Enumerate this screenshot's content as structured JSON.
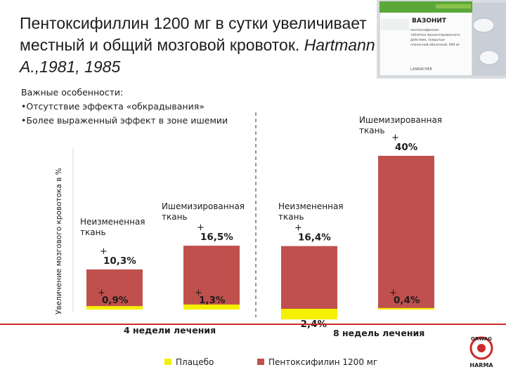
{
  "slide": {
    "title_main": "Пентоксифиллин 1200 мг в сутки увеличивает местный и общий мозговой кровоток.",
    "title_ref": "Hartmann A.,1981, 1985",
    "notes_heading": "Важные особенности:",
    "notes": [
      "•Отсутствие эффекта «обкрадывания»",
      "•Более выраженный эффект в зоне ишемии"
    ]
  },
  "product_box": {
    "brand": "ВАЗОНИТ",
    "lines": [
      "пентоксифиллин",
      "таблетки пролонгированного",
      "действия, покрытые",
      "пленочной оболочкой, 600 мг"
    ],
    "maker": "LANNACHER"
  },
  "logo": {
    "top_text": "ORWAG",
    "bottom_text": "HARMA"
  },
  "chart_data": {
    "type": "bar",
    "ylabel": "Увеличение мозгового кровотока в %",
    "period_labels": [
      "4 недели лечения",
      "8 недель лечения"
    ],
    "groups": [
      {
        "label": "Неизмененная ткань",
        "period": "4 недели лечения",
        "placebo": 0.9,
        "drug": 10.3,
        "placebo_label": "0,9%",
        "drug_label": "10,3%"
      },
      {
        "label": "Ишемизированная ткань",
        "period": "4 недели лечения",
        "placebo": 1.3,
        "drug": 16.5,
        "placebo_label": "1,3%",
        "drug_label": "16,5%"
      },
      {
        "label": "Неизмененная ткань",
        "period": "8 недель лечения",
        "placebo": -2.4,
        "drug": 16.4,
        "placebo_label": "-2,4%",
        "drug_label": "16,4%"
      },
      {
        "label": "Ишемизированная ткань",
        "period": "8 недель лечения",
        "placebo": 0.4,
        "drug": 40,
        "placebo_label": "0,4%",
        "drug_label": "40%"
      }
    ],
    "series": [
      {
        "name": "Плацебо",
        "color": "#f5ef00"
      },
      {
        "name": "Пентоксифилин 1200 мг",
        "color": "#c0504d"
      }
    ],
    "plus_marker": "+",
    "legend_position": "bottom",
    "grid": false
  }
}
